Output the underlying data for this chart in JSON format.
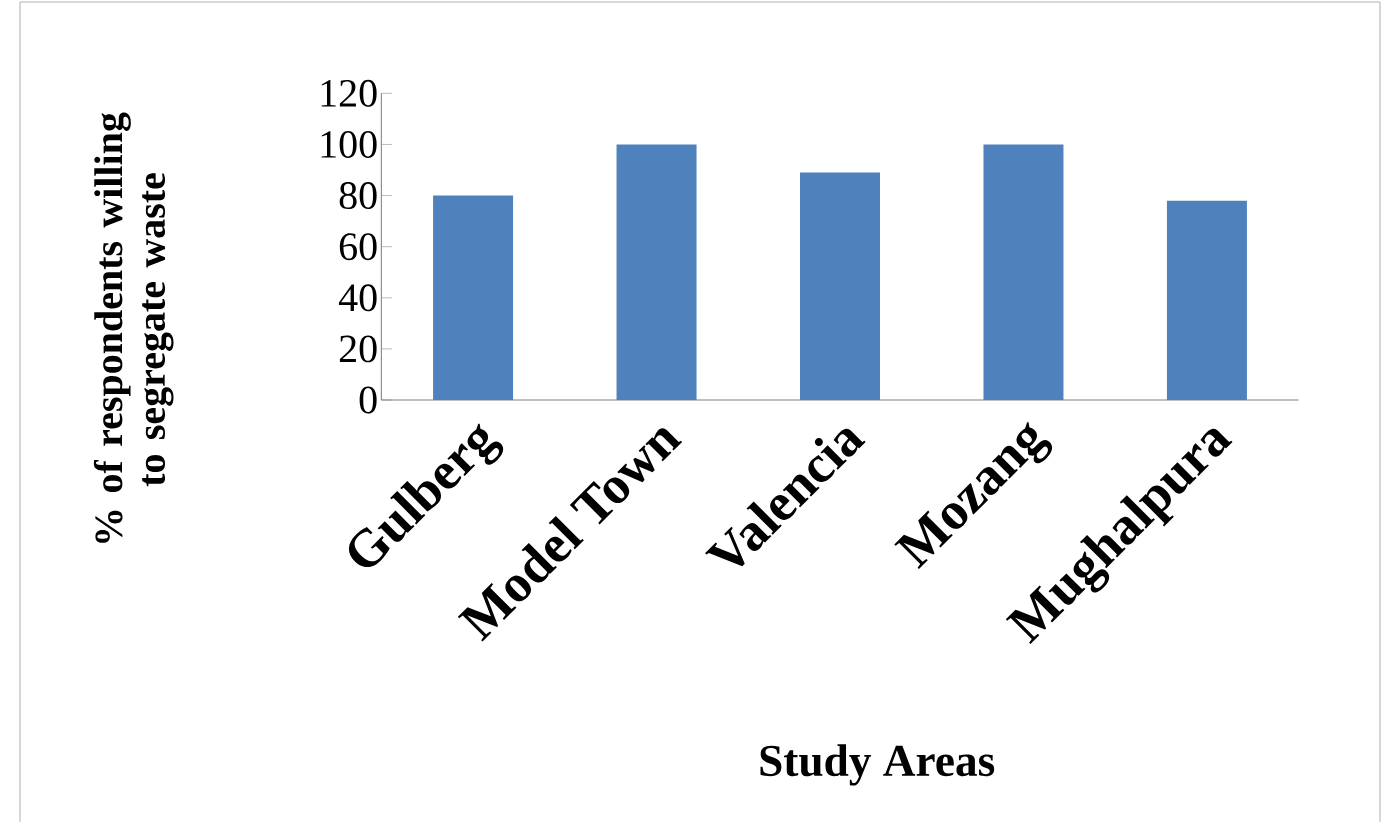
{
  "chart_data": {
    "type": "bar",
    "xlabel": "Study Areas",
    "ylabel": "% of respondents willing to segregate waste",
    "categories": [
      "Gulberg",
      "Model Town",
      "Valencia",
      "Mozang",
      "Mughalpura"
    ],
    "values": [
      80,
      100,
      89,
      100,
      78
    ],
    "color": "#4f81bd",
    "ylim": [
      0,
      120
    ],
    "yticks": [
      0,
      20,
      40,
      60,
      80,
      100,
      120
    ],
    "grid": false
  }
}
